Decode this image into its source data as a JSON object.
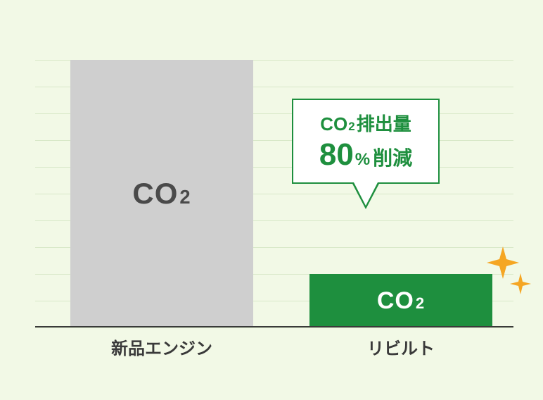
{
  "chart": {
    "type": "bar",
    "background_color": "#f2f9e6",
    "grid_color": "#d8e8c8",
    "baseline_color": "#3a3a3a",
    "ylim": [
      0,
      100
    ],
    "gridline_count": 10,
    "bars": [
      {
        "key": "new_engine",
        "value": 100,
        "fill": "#cfcfcf",
        "label_co": "CO",
        "label_sub": "2",
        "label_color": "#4a4a4a",
        "label_fontsize": 42,
        "x_label": "新品エンジン"
      },
      {
        "key": "rebuilt",
        "value": 20,
        "fill": "#1e8f3e",
        "label_co": "CO",
        "label_sub": "2",
        "label_color": "#ffffff",
        "label_fontsize": 34,
        "x_label": "リビルト"
      }
    ],
    "x_label_fontsize": 24,
    "x_label_color": "#3a3a3a"
  },
  "callout": {
    "border_color": "#1e8f3e",
    "background_color": "#ffffff",
    "text_color": "#1e8f3e",
    "line1_co": "CO",
    "line1_sub": "2",
    "line1_rest": "排出量",
    "line1_fontsize": 26,
    "line2_big": "80",
    "line2_big_fontsize": 44,
    "line2_pct": "%",
    "line2_pct_fontsize": 24,
    "line2_rest": "削減",
    "line2_rest_fontsize": 28
  },
  "sparkle": {
    "color": "#f5a623"
  }
}
